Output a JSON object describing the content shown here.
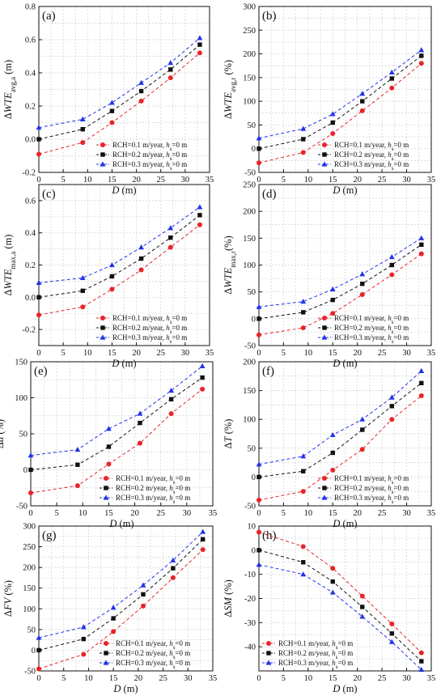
{
  "figure": {
    "legend_labels": [
      "RCH=0.1 m/year, h_s=0 m",
      "RCH=0.2 m/year, h_s=0 m",
      "RCH=0.3 m/year, h_s=0 m"
    ],
    "legend_text": {
      "rch": [
        "RCH=0.1 m/year, ",
        "RCH=0.2 m/year, ",
        "RCH=0.3 m/year, "
      ],
      "h": "h",
      "sub": "s",
      "tail": "=0 m"
    },
    "series_colors": [
      "#e8242a",
      "#111111",
      "#2233e8"
    ],
    "series_markers": [
      "circle",
      "square",
      "triangle"
    ]
  },
  "chart_data": [
    {
      "type": "line",
      "panel_label": "(a)",
      "ylabel": {
        "pre": "Δ",
        "it": "WTE",
        "sub": "avg,a",
        "post": " (m)"
      },
      "xlabel": "D (m)",
      "xlim": [
        0,
        35
      ],
      "ylim": [
        -0.2,
        0.8
      ],
      "xticks": [
        0,
        5,
        10,
        15,
        20,
        25,
        30,
        35
      ],
      "yticks": [
        -0.2,
        0.0,
        0.2,
        0.4,
        0.6,
        0.8
      ],
      "ytick_labels": [
        "-0.2",
        "0.0",
        "0.2",
        "0.4",
        "0.6",
        "0.8"
      ],
      "legend": "lower-right",
      "x": [
        0,
        9,
        15,
        21,
        27,
        33
      ],
      "series": [
        {
          "name": "RCH=0.1 m/year, h_s=0 m",
          "values": [
            -0.09,
            -0.02,
            0.1,
            0.23,
            0.37,
            0.52
          ]
        },
        {
          "name": "RCH=0.2 m/year, h_s=0 m",
          "values": [
            0.0,
            0.06,
            0.17,
            0.29,
            0.42,
            0.57
          ]
        },
        {
          "name": "RCH=0.3 m/year, h_s=0 m",
          "values": [
            0.07,
            0.12,
            0.22,
            0.34,
            0.46,
            0.61
          ]
        }
      ]
    },
    {
      "type": "line",
      "panel_label": "(b)",
      "ylabel": {
        "pre": "Δ",
        "it": "WTE",
        "sub": "avg,r",
        "post": " (%)"
      },
      "xlabel": "D (m)",
      "xlim": [
        0,
        35
      ],
      "ylim": [
        -50,
        300
      ],
      "xticks": [
        0,
        5,
        10,
        15,
        20,
        25,
        30,
        35
      ],
      "yticks": [
        -50,
        0,
        50,
        100,
        150,
        200,
        250,
        300
      ],
      "ytick_labels": [
        "-50",
        "0",
        "50",
        "100",
        "150",
        "200",
        "250",
        "300"
      ],
      "legend": "lower-right",
      "x": [
        0,
        9,
        15,
        21,
        27,
        33
      ],
      "series": [
        {
          "name": "RCH=0.1 m/year, h_s=0 m",
          "values": [
            -30,
            -8,
            32,
            80,
            128,
            180
          ]
        },
        {
          "name": "RCH=0.2 m/year, h_s=0 m",
          "values": [
            0,
            20,
            55,
            100,
            148,
            196
          ]
        },
        {
          "name": "RCH=0.3 m/year, h_s=0 m",
          "values": [
            22,
            42,
            73,
            116,
            161,
            208
          ]
        }
      ]
    },
    {
      "type": "line",
      "panel_label": "(c)",
      "ylabel": {
        "pre": "Δ",
        "it": "WTE",
        "sub": "max,a",
        "post": " (m)"
      },
      "xlabel": "D (m)",
      "xlim": [
        0,
        35
      ],
      "ylim": [
        -0.3,
        0.7
      ],
      "xticks": [
        0,
        5,
        10,
        15,
        20,
        25,
        30,
        35
      ],
      "yticks": [
        -0.2,
        0.0,
        0.2,
        0.4,
        0.6
      ],
      "ytick_labels": [
        "-0.2",
        "0.0",
        "0.2",
        "0.4",
        "0.6"
      ],
      "legend": "lower-right",
      "x": [
        0,
        9,
        15,
        21,
        27,
        33
      ],
      "series": [
        {
          "name": "RCH=0.1 m/year, h_s=0 m",
          "values": [
            -0.11,
            -0.06,
            0.05,
            0.17,
            0.31,
            0.45
          ]
        },
        {
          "name": "RCH=0.2 m/year, h_s=0 m",
          "values": [
            0.0,
            0.04,
            0.13,
            0.24,
            0.37,
            0.51
          ]
        },
        {
          "name": "RCH=0.3 m/year, h_s=0 m",
          "values": [
            0.09,
            0.12,
            0.2,
            0.31,
            0.43,
            0.56
          ]
        }
      ]
    },
    {
      "type": "line",
      "panel_label": "(d)",
      "ylabel": {
        "pre": "Δ",
        "it": "WTE",
        "sub": "max,r",
        "post": "(%)"
      },
      "xlabel": "D (m)",
      "xlim": [
        0,
        35
      ],
      "ylim": [
        -50,
        250
      ],
      "xticks": [
        0,
        5,
        10,
        15,
        20,
        25,
        30,
        35
      ],
      "yticks": [
        -50,
        0,
        50,
        100,
        150,
        200,
        250
      ],
      "ytick_labels": [
        "-50",
        "0",
        "50",
        "100",
        "150",
        "200",
        "250"
      ],
      "legend": "lower-right",
      "x": [
        0,
        9,
        15,
        21,
        27,
        33
      ],
      "series": [
        {
          "name": "RCH=0.1 m/year, h_s=0 m",
          "values": [
            -30,
            -17,
            10,
            45,
            82,
            121
          ]
        },
        {
          "name": "RCH=0.2 m/year, h_s=0 m",
          "values": [
            0,
            12,
            35,
            65,
            100,
            138
          ]
        },
        {
          "name": "RCH=0.3 m/year, h_s=0 m",
          "values": [
            22,
            32,
            55,
            83,
            115,
            150
          ]
        }
      ]
    },
    {
      "type": "line",
      "panel_label": "(e)",
      "ylabel": {
        "pre": "Δ",
        "it": "d",
        "sub": "",
        "post": " (%)"
      },
      "xlabel": "D (m)",
      "xlim": [
        0,
        35
      ],
      "ylim": [
        -50,
        150
      ],
      "xticks": [
        0,
        5,
        10,
        15,
        20,
        25,
        30,
        35
      ],
      "yticks": [
        -50,
        0,
        50,
        100,
        150
      ],
      "ytick_labels": [
        "-50",
        "0",
        "50",
        "100",
        "150"
      ],
      "legend": "lower-right",
      "x": [
        0,
        9,
        15,
        21,
        27,
        33
      ],
      "series": [
        {
          "name": "RCH=0.1 m/year, h_s=0 m",
          "values": [
            -32,
            -22,
            8,
            37,
            78,
            112
          ]
        },
        {
          "name": "RCH=0.2 m/year, h_s=0 m",
          "values": [
            0,
            7,
            32,
            65,
            98,
            128
          ]
        },
        {
          "name": "RCH=0.3 m/year, h_s=0 m",
          "values": [
            20,
            28,
            57,
            78,
            110,
            144
          ]
        }
      ]
    },
    {
      "type": "line",
      "panel_label": "(f)",
      "ylabel": {
        "pre": "Δ",
        "it": "T",
        "sub": "",
        "post": " (%)"
      },
      "xlabel": "D (m)",
      "xlim": [
        0,
        35
      ],
      "ylim": [
        -50,
        200
      ],
      "xticks": [
        0,
        5,
        10,
        15,
        20,
        25,
        30,
        35
      ],
      "yticks": [
        -50,
        0,
        50,
        100,
        150,
        200
      ],
      "ytick_labels": [
        "-50",
        "0",
        "50",
        "100",
        "150",
        "200"
      ],
      "legend": "lower-right",
      "x": [
        0,
        9,
        15,
        21,
        27,
        33
      ],
      "series": [
        {
          "name": "RCH=0.1 m/year, h_s=0 m",
          "values": [
            -40,
            -25,
            12,
            48,
            100,
            141
          ]
        },
        {
          "name": "RCH=0.2 m/year, h_s=0 m",
          "values": [
            0,
            10,
            42,
            82,
            123,
            163
          ]
        },
        {
          "name": "RCH=0.3 m/year, h_s=0 m",
          "values": [
            22,
            36,
            73,
            100,
            138,
            184
          ]
        }
      ]
    },
    {
      "type": "line",
      "panel_label": "(g)",
      "ylabel": {
        "pre": "Δ",
        "it": "FV",
        "sub": "",
        "post": " (%)"
      },
      "xlabel": "D (m)",
      "xlim": [
        0,
        35
      ],
      "ylim": [
        -50,
        300
      ],
      "xticks": [
        0,
        5,
        10,
        15,
        20,
        25,
        30,
        35
      ],
      "yticks": [
        -50,
        0,
        50,
        100,
        150,
        200,
        250,
        300
      ],
      "ytick_labels": [
        "-50",
        "0",
        "50",
        "100",
        "150",
        "200",
        "250",
        "300"
      ],
      "legend": "lower-right",
      "x": [
        0,
        9,
        15,
        21,
        27,
        33
      ],
      "series": [
        {
          "name": "RCH=0.1 m/year, h_s=0 m",
          "values": [
            -45,
            -10,
            45,
            107,
            175,
            243
          ]
        },
        {
          "name": "RCH=0.2 m/year, h_s=0 m",
          "values": [
            0,
            27,
            77,
            135,
            198,
            268
          ]
        },
        {
          "name": "RCH=0.3 m/year, h_s=0 m",
          "values": [
            30,
            56,
            103,
            157,
            217,
            286
          ]
        }
      ]
    },
    {
      "type": "line",
      "panel_label": "(h)",
      "ylabel": {
        "pre": "Δ",
        "it": "SM",
        "sub": "",
        "post": " (%)"
      },
      "xlabel": "D (m)",
      "xlim": [
        0,
        35
      ],
      "ylim": [
        -50,
        10
      ],
      "xticks": [
        0,
        5,
        10,
        15,
        20,
        25,
        30,
        35
      ],
      "yticks": [
        -40,
        -30,
        -20,
        -10,
        0,
        10
      ],
      "ytick_labels": [
        "-40",
        "-30",
        "-20",
        "-10",
        "0",
        "10"
      ],
      "legend": "lower-left",
      "x": [
        0,
        9,
        15,
        21,
        27,
        33
      ],
      "series": [
        {
          "name": "RCH=0.1 m/year, h_s=0 m",
          "values": [
            7.5,
            1.5,
            -7.5,
            -19,
            -30.5,
            -42.5
          ]
        },
        {
          "name": "RCH=0.2 m/year, h_s=0 m",
          "values": [
            0,
            -5,
            -13,
            -23.5,
            -34.5,
            -46
          ]
        },
        {
          "name": "RCH=0.3 m/year, h_s=0 m",
          "values": [
            -6,
            -10,
            -17.5,
            -27.5,
            -38,
            -49.5
          ]
        }
      ]
    }
  ]
}
